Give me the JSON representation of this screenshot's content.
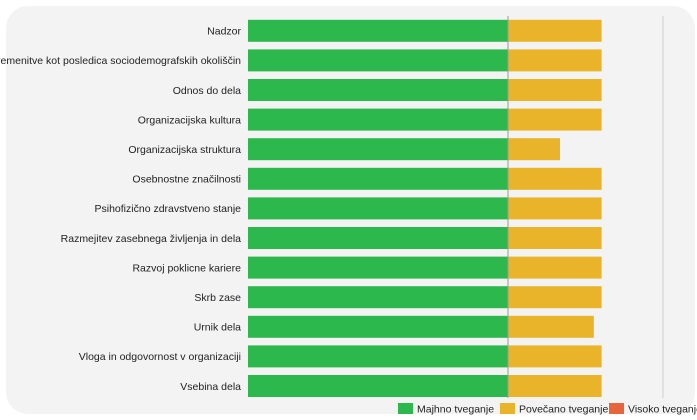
{
  "chart_data": {
    "type": "bar",
    "orientation": "horizontal",
    "stacked": true,
    "categories": [
      "Nadzor",
      "Obremenitve kot posledica sociodemografskih okoliščin",
      "Odnos do dela",
      "Organizacijska kultura",
      "Organizacijska struktura",
      "Osebnostne značilnosti",
      "Psihofizično zdravstveno stanje",
      "Razmejitev zasebnega življenja in dela",
      "Razvoj poklicne kariere",
      "Skrb zase",
      "Urnik dela",
      "Vloga in odgovornost v organizaciji",
      "Vsebina dela"
    ],
    "series": [
      {
        "name": "Majhno tveganje",
        "color": "#2db84d",
        "values": [
          100,
          100,
          100,
          100,
          100,
          100,
          100,
          100,
          100,
          100,
          100,
          100,
          100
        ]
      },
      {
        "name": "Povečano tveganje",
        "color": "#e9b32a",
        "values": [
          36,
          36,
          36,
          36,
          20,
          36,
          36,
          36,
          36,
          36,
          33,
          36,
          36
        ]
      },
      {
        "name": "Visoko tveganje",
        "color": "#e8643a",
        "values": [
          0,
          0,
          0,
          0,
          0,
          0,
          0,
          0,
          0,
          0,
          0,
          0,
          0
        ]
      }
    ],
    "xlim": [
      0,
      160
    ],
    "grid": false,
    "legend_position": "bottom-right"
  }
}
